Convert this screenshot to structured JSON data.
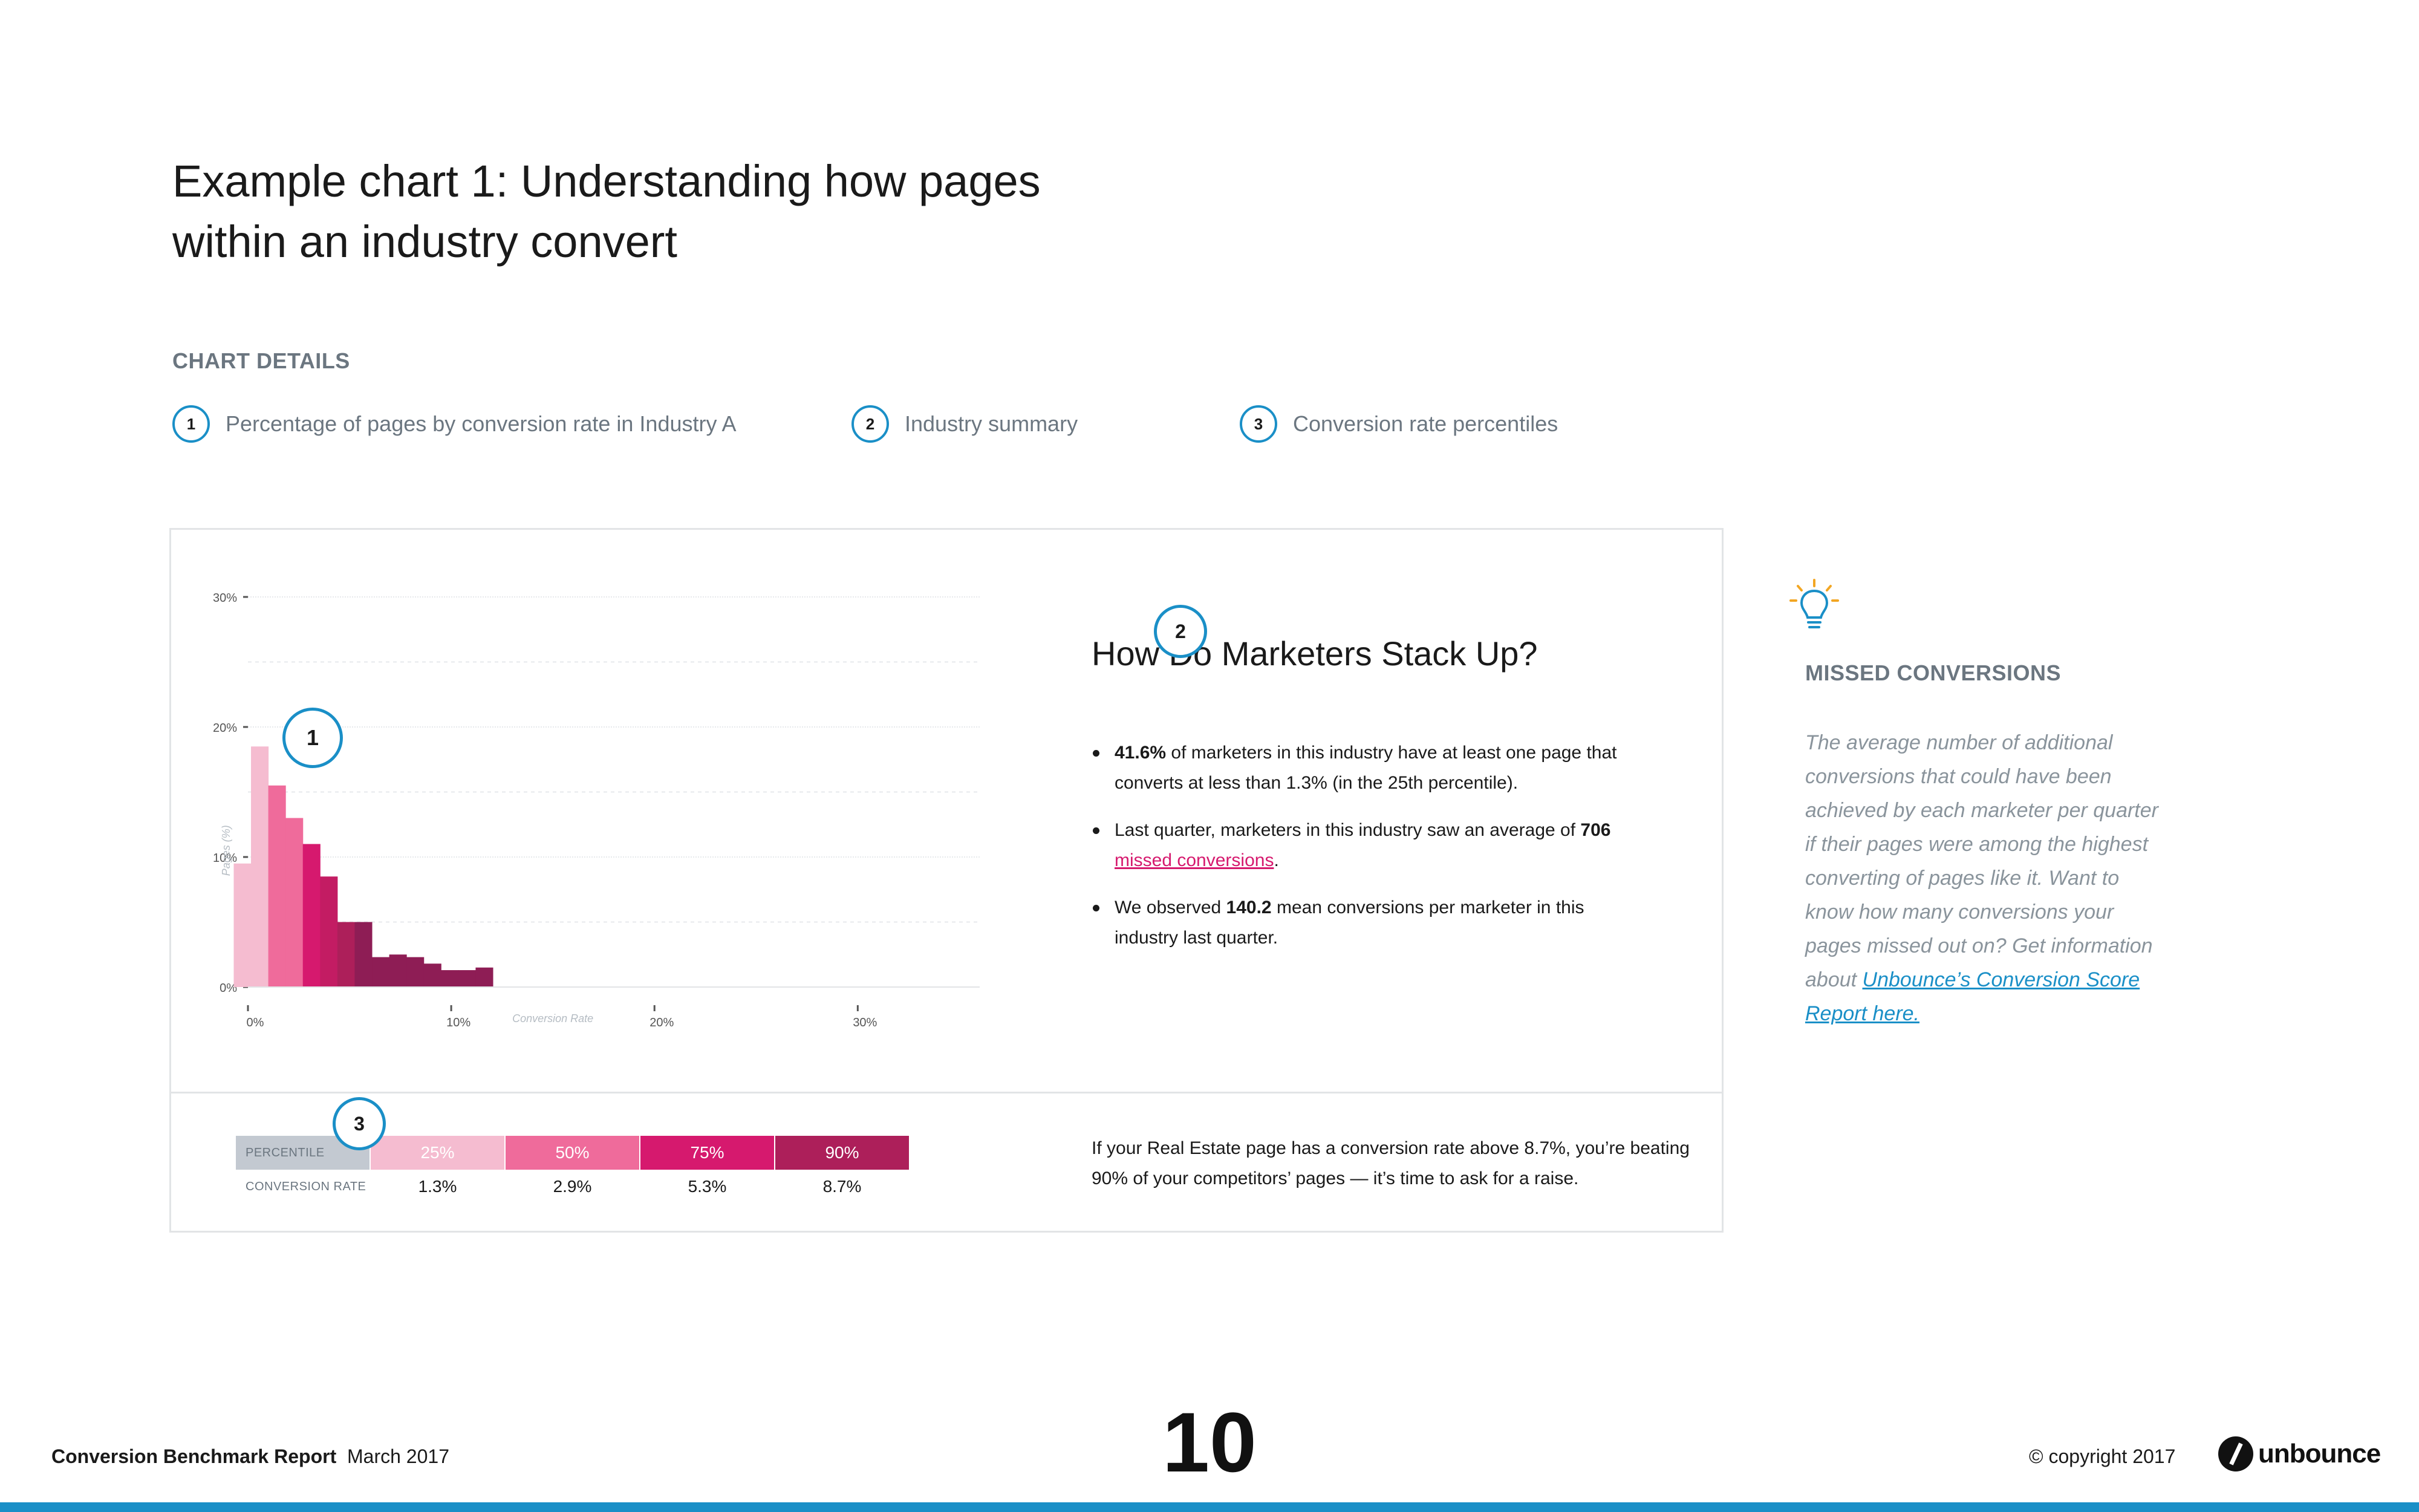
{
  "page_title": "Example chart 1: Understanding how pages within an industry convert",
  "chart_details": {
    "heading": "CHART DETAILS",
    "items": [
      {
        "num": "1",
        "label": "Percentage of pages by conversion rate in Industry A"
      },
      {
        "num": "2",
        "label": "Industry summary"
      },
      {
        "num": "3",
        "label": "Conversion rate percentiles"
      }
    ]
  },
  "chart_data": {
    "type": "bar",
    "title": "",
    "xlabel": "Conversion Rate",
    "ylabel": "Pages (%)",
    "x_ticks": [
      "0%",
      "10%",
      "20%",
      "30%"
    ],
    "y_ticks": [
      "0%",
      "10%",
      "20%",
      "30%"
    ],
    "xlim": [
      0,
      36
    ],
    "ylim": [
      0,
      30
    ],
    "bin_width": 0.85,
    "bins_start": [
      -0.7,
      0.15,
      1.0,
      1.85,
      2.7,
      3.55,
      4.4,
      5.25,
      6.1,
      6.95,
      7.8,
      8.65,
      9.5,
      10.35,
      11.2,
      12.05
    ],
    "values": [
      9.5,
      18.5,
      15.5,
      13.0,
      11.0,
      8.5,
      5.0,
      5.0,
      2.3,
      2.5,
      2.3,
      1.8,
      1.3,
      1.3,
      1.5,
      0
    ],
    "colors": [
      "#f5bcd0",
      "#f5bcd0",
      "#ef6b9b",
      "#ef6b9b",
      "#d6196e",
      "#c31c63",
      "#ad1f5a",
      "#8e1d55",
      "#8e1d55",
      "#8e1d55",
      "#8e1d55",
      "#8e1d55",
      "#8e1d55",
      "#8e1d55",
      "#8e1d55",
      "#8e1d55"
    ],
    "grid": true,
    "callout": "1"
  },
  "summary": {
    "callout": "2",
    "heading": "How Do Marketers Stack Up?",
    "b1_strong": "41.6%",
    "b1_text": " of marketers in this industry have at least one page that converts at less than 1.3% (in the 25th percentile).",
    "b2_pre": "Last quarter, marketers in this industry saw an average of ",
    "b2_strong": "706",
    "b2_link": "missed conversions",
    "b2_post": ".",
    "b3_pre": "We observed ",
    "b3_strong": "140.2",
    "b3_post": " mean conversions per marketer in this industry last quarter."
  },
  "percentiles": {
    "callout": "3",
    "row1_label": "PERCENTILE",
    "row2_label": "CONVERSION RATE",
    "cols": [
      {
        "pct": "25%",
        "rate": "1.3%",
        "color": "#f5bcd0"
      },
      {
        "pct": "50%",
        "rate": "2.9%",
        "color": "#ef6b9b"
      },
      {
        "pct": "75%",
        "rate": "5.3%",
        "color": "#d6196e"
      },
      {
        "pct": "90%",
        "rate": "8.7%",
        "color": "#ad1f5a"
      }
    ],
    "label_color": "#c3c9d1",
    "text": "If your Real Estate page has a conversion rate above 8.7%, you’re beating 90% of your competitors’ pages — it’s time to ask for a raise."
  },
  "sidebar": {
    "heading": "MISSED CONVERSIONS",
    "text": "The average number of additional conversions that could have been achieved by each marketer per quarter if their pages were among the highest converting of pages like it. Want to know how many conversions your pages missed out on? Get information about ",
    "link": "Unbounce’s Conversion Score Report here."
  },
  "footer": {
    "report_title": "Conversion Benchmark Report",
    "date": "March 2017",
    "page_number": "10",
    "copyright": "© copyright 2017",
    "logo_text": "unbounce"
  },
  "colors": {
    "accent_blue": "#1a8fc7",
    "pink_light": "#f5bcd0",
    "pink": "#ef6b9b",
    "magenta": "#d6196e",
    "plum": "#8e1d55"
  }
}
